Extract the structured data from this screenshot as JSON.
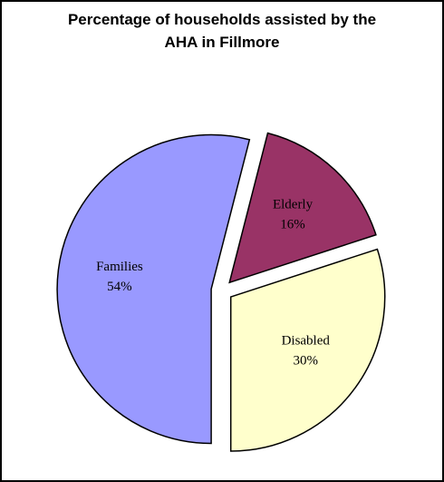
{
  "chart_data": {
    "type": "pie",
    "title": [
      "Percentage of households assisted by the",
      "AHA in Fillmore"
    ],
    "categories": [
      "Families",
      "Elderly",
      "Disabled"
    ],
    "values": [
      54,
      16,
      30
    ],
    "value_labels": [
      "54%",
      "16%",
      "30%"
    ],
    "colors": [
      "#9999ff",
      "#993366",
      "#ffffcc"
    ]
  }
}
